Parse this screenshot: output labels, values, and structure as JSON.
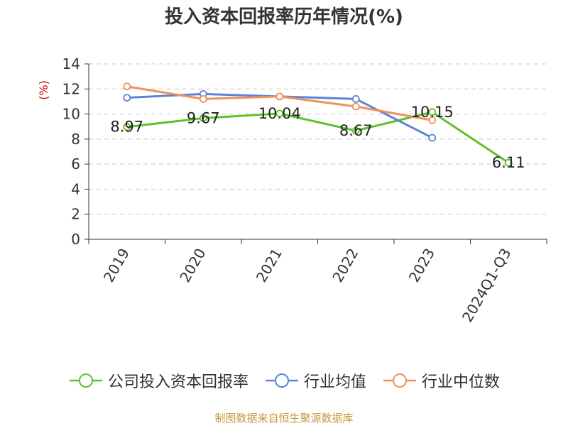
{
  "title": "投入资本回报率历年情况(%)",
  "source": "制图数据来自恒生聚源数据库",
  "chart_data": {
    "type": "line",
    "title": "投入资本回报率历年情况(%)",
    "ylabel": "(%)",
    "xlabel": "",
    "categories": [
      "2019",
      "2020",
      "2021",
      "2022",
      "2023",
      "2024Q1-Q3"
    ],
    "ylim": [
      0,
      14
    ],
    "yticks": [
      0,
      2,
      4,
      6,
      8,
      10,
      12,
      14
    ],
    "grid": true,
    "legend_position": "bottom",
    "series": [
      {
        "name": "公司投入资本回报率",
        "color": "#5cc22a",
        "values": [
          8.97,
          9.67,
          10.04,
          8.67,
          10.15,
          6.11
        ],
        "labels": [
          "8.97",
          "9.67",
          "10.04",
          "8.67",
          "10.15",
          "6.11"
        ]
      },
      {
        "name": "行业均值",
        "color": "#5b84d8",
        "values": [
          11.3,
          11.6,
          11.4,
          11.2,
          8.1,
          null
        ]
      },
      {
        "name": "行业中位数",
        "color": "#f0905c",
        "values": [
          12.2,
          11.2,
          11.4,
          10.6,
          9.5,
          null
        ]
      }
    ]
  }
}
